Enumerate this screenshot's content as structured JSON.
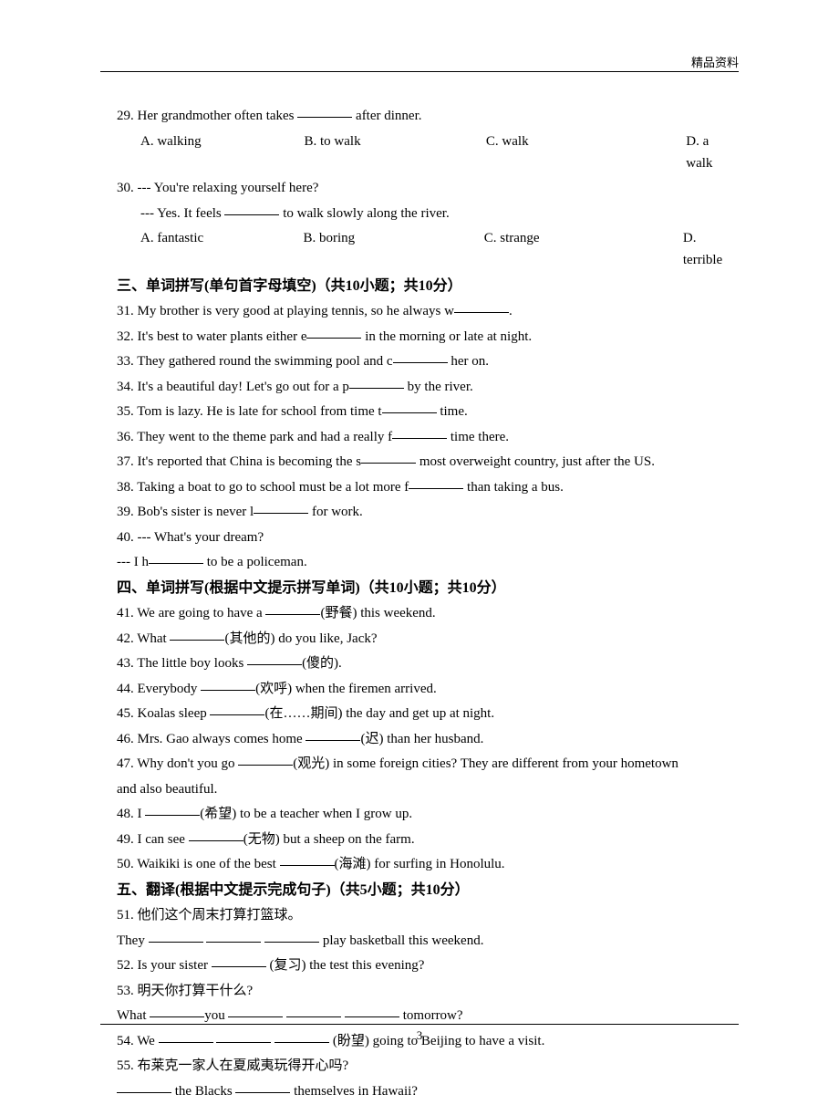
{
  "header": {
    "label": "精品资料"
  },
  "questions": {
    "q29": {
      "stem_a": "29. Her grandmother often takes ",
      "stem_b": " after dinner.",
      "opts": {
        "a": "A. walking",
        "b": "B. to walk",
        "c": "C. walk",
        "d": "D. a walk"
      }
    },
    "q30": {
      "line1": "30. --- You're relaxing yourself here?",
      "line2_a": "--- Yes. It feels ",
      "line2_b": " to walk slowly along the river.",
      "opts": {
        "a": "A. fantastic",
        "b": "B. boring",
        "c": "C. strange",
        "d": "D. terrible"
      }
    }
  },
  "section3": {
    "title": "三、单词拼写(单句首字母填空)（共10小题；共10分）",
    "q31_a": "31. My brother is very good at playing tennis, so he always w",
    "q31_b": ".",
    "q32_a": "32. It's best to water plants either e",
    "q32_b": " in the morning or late at night.",
    "q33_a": "33. They gathered round the swimming pool and c",
    "q33_b": " her on.",
    "q34_a": "34. It's a beautiful day! Let's go out for a p",
    "q34_b": " by the river.",
    "q35_a": "35. Tom is lazy. He is late for school from time t",
    "q35_b": " time.",
    "q36_a": "36. They went to the theme park and had a really f",
    "q36_b": " time there.",
    "q37_a": "37. It's reported that China is becoming the s",
    "q37_b": " most overweight country, just after the US.",
    "q38_a": "38. Taking a boat to go to school must be a lot more f",
    "q38_b": " than taking a bus.",
    "q39_a": "39. Bob's sister is never l",
    "q39_b": " for work.",
    "q40_line1": "40. --- What's your dream?",
    "q40_line2_a": "--- I h",
    "q40_line2_b": " to be a policeman."
  },
  "section4": {
    "title": "四、单词拼写(根据中文提示拼写单词)（共10小题；共10分）",
    "q41_a": "41. We are going to have a ",
    "q41_b": "(野餐) this weekend.",
    "q42_a": "42. What ",
    "q42_b": "(其他的) do you like, Jack?",
    "q43_a": "43. The little boy looks ",
    "q43_b": "(傻的).",
    "q44_a": "44. Everybody ",
    "q44_b": "(欢呼) when the firemen arrived.",
    "q45_a": "45. Koalas sleep ",
    "q45_b": "(在……期间) the day and get up at night.",
    "q46_a": "46. Mrs. Gao always comes home ",
    "q46_b": "(迟) than her husband.",
    "q47_a": "47. Why don't you go ",
    "q47_b": "(观光) in some foreign cities? They are different from your hometown",
    "q47_line2": "and also beautiful.",
    "q48_a": "48. I ",
    "q48_b": "(希望) to be a teacher when I grow up.",
    "q49_a": "49. I can see ",
    "q49_b": "(无物) but a sheep on the farm.",
    "q50_a": "50. Waikiki is one of the best ",
    "q50_b": "(海滩) for surfing in Honolulu."
  },
  "section5": {
    "title": "五、翻译(根据中文提示完成句子)（共5小题；共10分）",
    "q51_line1": "51. 他们这个周末打算打篮球。",
    "q51_line2_a": "They ",
    "q51_line2_b": " play basketball this weekend.",
    "q52_a": "52. Is your sister ",
    "q52_b": " (复习) the test this evening?",
    "q53_line1": "53. 明天你打算干什么?",
    "q53_line2_a": "What ",
    "q53_line2_b": "you ",
    "q53_line2_c": " tomorrow?",
    "q54_a": "54. We ",
    "q54_b": " (盼望) going to Beijing to have a visit.",
    "q55_line1": "55. 布莱克一家人在夏威夷玩得开心吗?",
    "q55_line2_a": " the Blacks ",
    "q55_line2_b": " themselves in Hawaii?"
  },
  "footer": {
    "page": "3"
  }
}
